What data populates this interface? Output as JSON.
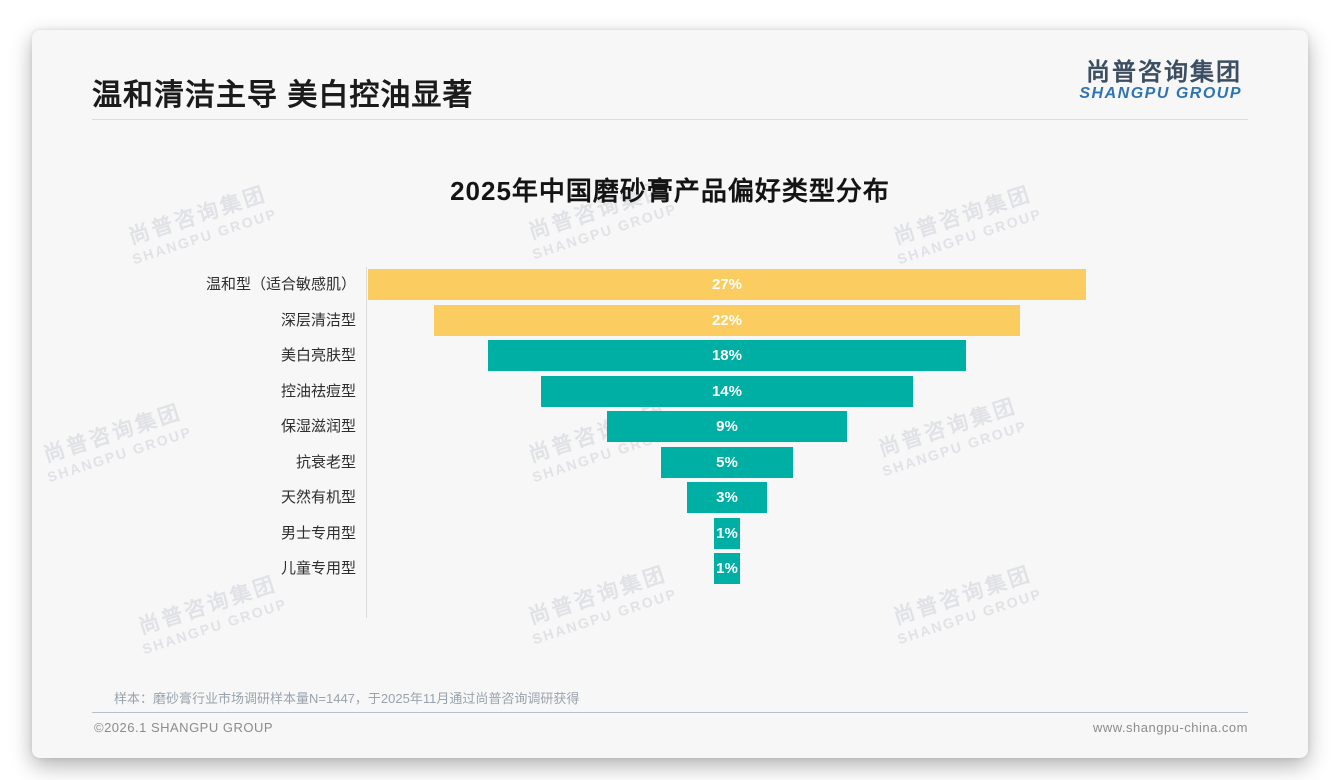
{
  "page": {
    "title": "温和清洁主导 美白控油显著",
    "logo": {
      "cn": "尚普咨询集团",
      "en": "SHANGPU GROUP"
    },
    "watermark": {
      "cn": "尚普咨询集团",
      "en": "SHANGPU GROUP"
    },
    "footnote": "样本：磨砂膏行业市场调研样本量N=1447，于2025年11月通过尚普咨询调研获得",
    "footer": {
      "left": "©2026.1 SHANGPU GROUP",
      "right": "www.shangpu-china.com"
    }
  },
  "chart_data": {
    "type": "bar",
    "variant": "horizontal-centered-funnel",
    "title": "2025年中国磨砂膏产品偏好类型分布",
    "categories": [
      "温和型（适合敏感肌）",
      "深层清洁型",
      "美白亮肤型",
      "控油祛痘型",
      "保湿滋润型",
      "抗衰老型",
      "天然有机型",
      "男士专用型",
      "儿童专用型"
    ],
    "values": [
      27,
      22,
      18,
      14,
      9,
      5,
      3,
      1,
      1
    ],
    "value_labels": [
      "27%",
      "22%",
      "18%",
      "14%",
      "9%",
      "5%",
      "3%",
      "1%",
      "1%"
    ],
    "bar_colors": [
      "#FBCD61",
      "#FBCD61",
      "#00AFA4",
      "#00AFA4",
      "#00AFA4",
      "#00AFA4",
      "#00AFA4",
      "#00AFA4",
      "#00AFA4"
    ],
    "colors": {
      "highlight": "#FBCD61",
      "default": "#00AFA4"
    },
    "xlim": [
      0,
      27
    ],
    "xlabel": "",
    "ylabel": "",
    "legend": false,
    "gridlines": false
  }
}
